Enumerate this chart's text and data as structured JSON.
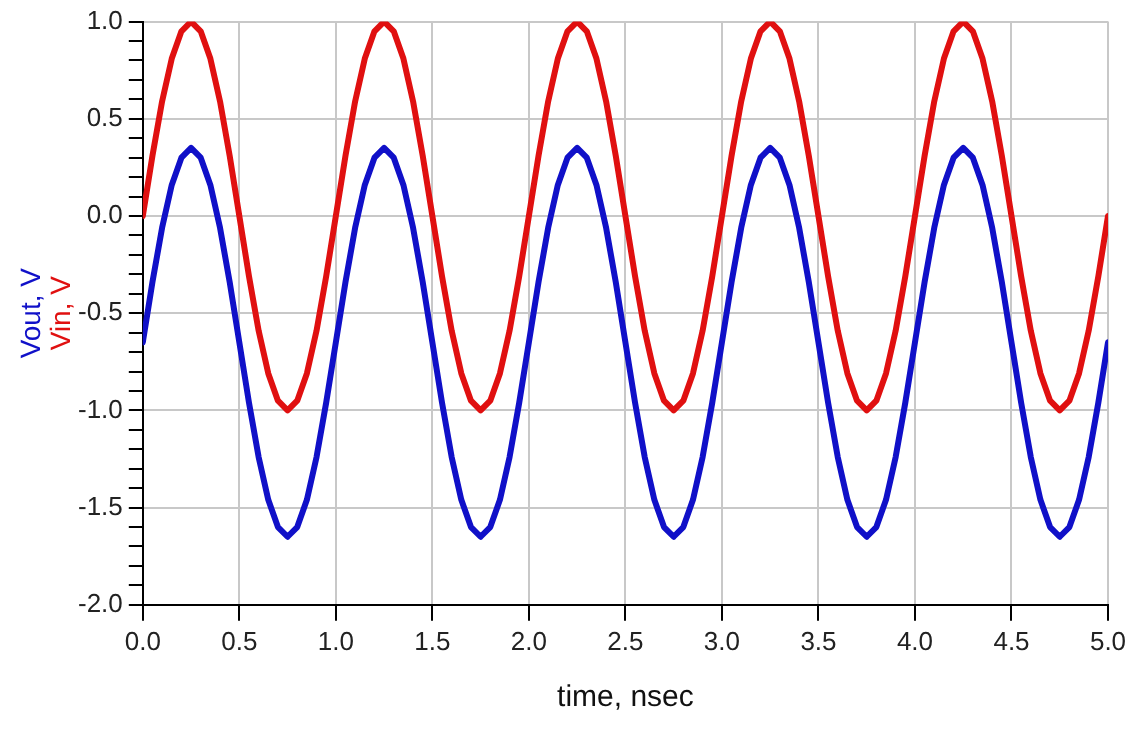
{
  "chart_data": {
    "type": "line",
    "xlabel": "time, nsec",
    "x": [
      0,
      0.05,
      0.1,
      0.15,
      0.2,
      0.25,
      0.3,
      0.35,
      0.4,
      0.45,
      0.5,
      0.55,
      0.6,
      0.65,
      0.7,
      0.75,
      0.8,
      0.85,
      0.9,
      0.95,
      1,
      1.05,
      1.1,
      1.15,
      1.2,
      1.25,
      1.3,
      1.35,
      1.4,
      1.45,
      1.5,
      1.55,
      1.6,
      1.65,
      1.7,
      1.75,
      1.8,
      1.85,
      1.9,
      1.95,
      2,
      2.05,
      2.1,
      2.15,
      2.2,
      2.25,
      2.3,
      2.35,
      2.4,
      2.45,
      2.5,
      2.55,
      2.6,
      2.65,
      2.7,
      2.75,
      2.8,
      2.85,
      2.9,
      2.95,
      3,
      3.05,
      3.1,
      3.15,
      3.2,
      3.25,
      3.3,
      3.35,
      3.4,
      3.45,
      3.5,
      3.55,
      3.6,
      3.65,
      3.7,
      3.75,
      3.8,
      3.85,
      3.9,
      3.95,
      4,
      4.05,
      4.1,
      4.15,
      4.2,
      4.25,
      4.3,
      4.35,
      4.4,
      4.45,
      4.5,
      4.55,
      4.6,
      4.65,
      4.7,
      4.75,
      4.8,
      4.85,
      4.9,
      4.95,
      5
    ],
    "series": [
      {
        "name": "Vout, V",
        "color": "#1010c8",
        "values": [
          -0.65,
          -0.34,
          -0.06,
          0.16,
          0.3,
          0.35,
          0.3,
          0.16,
          -0.06,
          -0.34,
          -0.65,
          -0.96,
          -1.24,
          -1.46,
          -1.6,
          -1.65,
          -1.6,
          -1.46,
          -1.24,
          -0.96,
          -0.65,
          -0.34,
          -0.06,
          0.16,
          0.3,
          0.35,
          0.3,
          0.16,
          -0.06,
          -0.34,
          -0.65,
          -0.96,
          -1.24,
          -1.46,
          -1.6,
          -1.65,
          -1.6,
          -1.46,
          -1.24,
          -0.96,
          -0.65,
          -0.34,
          -0.06,
          0.16,
          0.3,
          0.35,
          0.3,
          0.16,
          -0.06,
          -0.34,
          -0.65,
          -0.96,
          -1.24,
          -1.46,
          -1.6,
          -1.65,
          -1.6,
          -1.46,
          -1.24,
          -0.96,
          -0.65,
          -0.34,
          -0.06,
          0.16,
          0.3,
          0.35,
          0.3,
          0.16,
          -0.06,
          -0.34,
          -0.65,
          -0.96,
          -1.24,
          -1.46,
          -1.6,
          -1.65,
          -1.6,
          -1.46,
          -1.24,
          -0.96,
          -0.65,
          -0.34,
          -0.06,
          0.16,
          0.3,
          0.35,
          0.3,
          0.16,
          -0.06,
          -0.34,
          -0.65,
          -0.96,
          -1.24,
          -1.46,
          -1.6,
          -1.65,
          -1.6,
          -1.46,
          -1.24,
          -0.96,
          -0.65
        ]
      },
      {
        "name": "Vin, V",
        "color": "#e01010",
        "values": [
          0,
          0.31,
          0.59,
          0.81,
          0.95,
          1,
          0.95,
          0.81,
          0.59,
          0.31,
          0,
          -0.31,
          -0.59,
          -0.81,
          -0.95,
          -1,
          -0.95,
          -0.81,
          -0.59,
          -0.31,
          0,
          0.31,
          0.59,
          0.81,
          0.95,
          1,
          0.95,
          0.81,
          0.59,
          0.31,
          0,
          -0.31,
          -0.59,
          -0.81,
          -0.95,
          -1,
          -0.95,
          -0.81,
          -0.59,
          -0.31,
          0,
          0.31,
          0.59,
          0.81,
          0.95,
          1,
          0.95,
          0.81,
          0.59,
          0.31,
          0,
          -0.31,
          -0.59,
          -0.81,
          -0.95,
          -1,
          -0.95,
          -0.81,
          -0.59,
          -0.31,
          0,
          0.31,
          0.59,
          0.81,
          0.95,
          1,
          0.95,
          0.81,
          0.59,
          0.31,
          0,
          -0.31,
          -0.59,
          -0.81,
          -0.95,
          -1,
          -0.95,
          -0.81,
          -0.59,
          -0.31,
          0,
          0.31,
          0.59,
          0.81,
          0.95,
          1,
          0.95,
          0.81,
          0.59,
          0.31,
          0,
          -0.31,
          -0.59,
          -0.81,
          -0.95,
          -1,
          -0.95,
          -0.81,
          -0.59,
          -0.31,
          0
        ]
      }
    ],
    "xlim": [
      0,
      5
    ],
    "xticks": [
      {
        "value": 0,
        "label": "0.0"
      },
      0.5,
      {
        "value": 1,
        "label": "1.0"
      },
      1.5,
      {
        "value": 2,
        "label": "2.0"
      },
      2.5,
      {
        "value": 3,
        "label": "3.0"
      },
      3.5,
      {
        "value": 4,
        "label": "4.0"
      },
      4.5,
      {
        "value": 5,
        "label": "5.0"
      }
    ],
    "ylim": [
      -2,
      1
    ],
    "yticks": [
      {
        "value": -2,
        "label": "-2.0"
      },
      {
        "value": -1.9,
        "label": null
      },
      {
        "value": -1.8,
        "label": null
      },
      {
        "value": -1.7,
        "label": null
      },
      {
        "value": -1.6,
        "label": null
      },
      -1.5,
      {
        "value": -1.4,
        "label": null
      },
      {
        "value": -1.3,
        "label": null
      },
      {
        "value": -1.2,
        "label": null
      },
      {
        "value": -1.1,
        "label": null
      },
      {
        "value": -1,
        "label": "-1.0"
      },
      {
        "value": -0.9,
        "label": null
      },
      {
        "value": -0.8,
        "label": null
      },
      {
        "value": -0.7,
        "label": null
      },
      {
        "value": -0.6,
        "label": null
      },
      -0.5,
      {
        "value": -0.4,
        "label": null
      },
      {
        "value": -0.3,
        "label": null
      },
      {
        "value": -0.2,
        "label": null
      },
      {
        "value": -0.1,
        "label": null
      },
      {
        "value": 0,
        "label": "0.0"
      },
      {
        "value": 0.1,
        "label": null
      },
      {
        "value": 0.2,
        "label": null
      },
      {
        "value": 0.3,
        "label": null
      },
      {
        "value": 0.4,
        "label": null
      },
      0.5,
      {
        "value": 0.6,
        "label": null
      },
      {
        "value": 0.7,
        "label": null
      },
      {
        "value": 0.8,
        "label": null
      },
      {
        "value": 0.9,
        "label": null
      },
      {
        "value": 1,
        "label": "1.0"
      }
    ],
    "grid": true,
    "marker": "none",
    "line_style": "solid"
  }
}
